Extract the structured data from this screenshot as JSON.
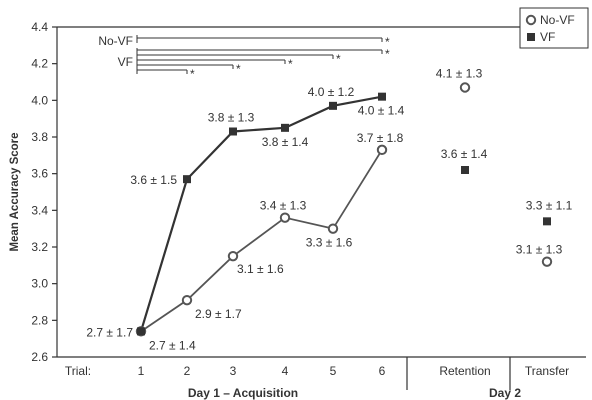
{
  "chart_data": {
    "type": "line",
    "ylabel": "Mean Accuracy Score",
    "ylim": [
      2.6,
      4.4
    ],
    "yticks": [
      "2.6",
      "2.8",
      "3.0",
      "3.2",
      "3.4",
      "3.6",
      "3.8",
      "4.0",
      "4.2",
      "4.4"
    ],
    "x_axis_caption": "Trial:",
    "categories": [
      "1",
      "2",
      "3",
      "4",
      "5",
      "6",
      "Retention",
      "Transfer"
    ],
    "groups": [
      "Day 1 – Acquisition",
      "Day 2"
    ],
    "legend": {
      "position": "top-right"
    },
    "series": [
      {
        "name": "No-VF",
        "color": "#555555",
        "marker": "open-circle",
        "values": [
          2.74,
          2.91,
          3.15,
          3.36,
          3.3,
          3.73,
          4.07,
          3.12
        ],
        "labels": [
          "2.7 ± 1.7",
          "2.9 ± 1.7",
          "3.1 ± 1.6",
          "3.4 ± 1.3",
          "3.3 ± 1.6",
          "3.7 ± 1.8",
          "4.1 ± 1.3",
          "3.1 ± 1.3"
        ]
      },
      {
        "name": "VF",
        "color": "#333333",
        "marker": "filled-square",
        "values": [
          2.74,
          3.57,
          3.83,
          3.85,
          3.97,
          4.02,
          3.62,
          3.34
        ],
        "labels": [
          "2.7 ± 1.4",
          "3.6 ± 1.5",
          "3.8 ± 1.3",
          "3.8 ± 1.4",
          "4.0 ± 1.2",
          "4.0 ± 1.4",
          "3.6 ± 1.4",
          "3.3 ± 1.1"
        ]
      }
    ],
    "connected_points": 6,
    "significance": {
      "group_labels": [
        "No-VF",
        "VF"
      ],
      "marker": "*",
      "novf_comparisons": [
        6
      ],
      "vf_comparisons": [
        2,
        3,
        4,
        5,
        6
      ]
    }
  }
}
